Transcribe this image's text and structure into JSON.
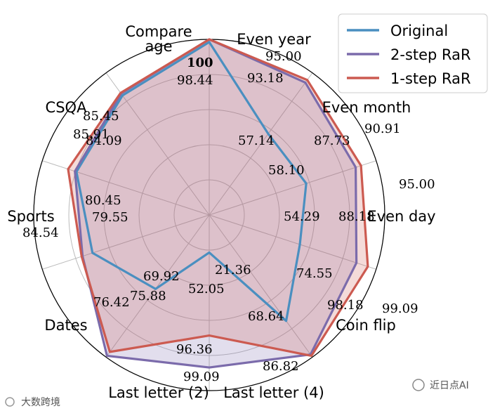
{
  "chart_data": {
    "type": "radar",
    "title": "",
    "rlim": [
      0,
      100
    ],
    "grid": true,
    "legend_position": "top-right",
    "axes": [
      "Compare age",
      "Even year",
      "Even month",
      "Even day",
      "Coin flip",
      "Last letter (4)",
      "Last letter (2)",
      "Dates",
      "Sports",
      "CSQA"
    ],
    "series": [
      {
        "name": "Original",
        "color": "#4a8fc0",
        "fill": false,
        "values": [
          98.44,
          57.14,
          58.1,
          54.29,
          74.55,
          21.36,
          52.05,
          69.92,
          79.55,
          84.09
        ]
      },
      {
        "name": "2-step RaR",
        "color": "#7b6bab",
        "fill": true,
        "values": [
          100,
          93.18,
          87.73,
          88.18,
          98.18,
          86.82,
          99.09,
          75.88,
          80.45,
          85.45
        ]
      },
      {
        "name": "1-step RaR",
        "color": "#cc5a50",
        "fill": true,
        "values": [
          100,
          95.0,
          90.91,
          95.0,
          99.09,
          68.64,
          96.36,
          76.42,
          84.54,
          85.91
        ]
      }
    ],
    "value_labels": [
      {
        "text": "100",
        "bold": true
      },
      {
        "text": "98.44"
      },
      {
        "text": "95.00"
      },
      {
        "text": "93.18"
      },
      {
        "text": "57.14"
      },
      {
        "text": "90.91"
      },
      {
        "text": "87.73"
      },
      {
        "text": "58.10"
      },
      {
        "text": "95.00"
      },
      {
        "text": "88.18"
      },
      {
        "text": "54.29"
      },
      {
        "text": "99.09"
      },
      {
        "text": "98.18"
      },
      {
        "text": "74.55"
      },
      {
        "text": "86.82"
      },
      {
        "text": "68.64"
      },
      {
        "text": "21.36"
      },
      {
        "text": "99.09"
      },
      {
        "text": "96.36"
      },
      {
        "text": "52.05"
      },
      {
        "text": "76.42"
      },
      {
        "text": "75.88"
      },
      {
        "text": "69.92"
      },
      {
        "text": "84.54"
      },
      {
        "text": "80.45"
      },
      {
        "text": "79.55"
      },
      {
        "text": "85.91"
      },
      {
        "text": "85.45"
      },
      {
        "text": "84.09"
      }
    ]
  },
  "watermarks": {
    "left": "大数跨境",
    "right": "近日点AI"
  }
}
